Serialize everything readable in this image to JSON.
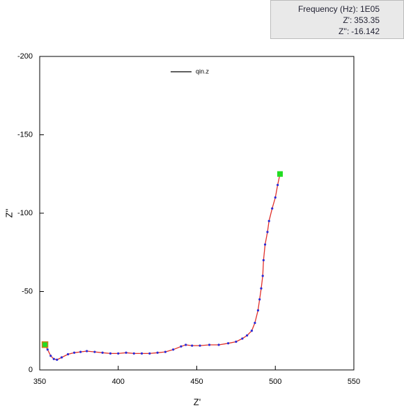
{
  "chart_data": {
    "type": "line",
    "x": [
      353.35,
      355,
      357,
      359,
      361,
      364,
      368,
      372,
      376,
      380,
      385,
      390,
      395,
      400,
      405,
      410,
      415,
      420,
      425,
      430,
      435,
      440,
      443,
      447,
      452,
      458,
      464,
      470,
      475,
      479,
      482,
      485,
      487,
      489,
      490,
      491,
      492,
      492.5,
      493.5,
      495,
      496,
      498,
      500,
      501.5,
      503
    ],
    "series": [
      {
        "name": "qin.z",
        "color": "#2b2bd6",
        "line_color": "#e0302a",
        "start_color": "#c8801a",
        "end_color": "#22dd22",
        "legend_color": "#000000",
        "values": [
          -16.142,
          -13,
          -9,
          -7,
          -6.5,
          -8,
          -10,
          -11,
          -11.5,
          -12,
          -11.5,
          -11,
          -10.5,
          -10.5,
          -11,
          -10.5,
          -10.5,
          -10.5,
          -11,
          -11.5,
          -13,
          -15,
          -16,
          -15.5,
          -15.5,
          -16,
          -16,
          -17,
          -18,
          -20,
          -22,
          -25,
          -30,
          -38,
          -45,
          -52,
          -60,
          -70,
          -80,
          -88,
          -95,
          -103,
          -110,
          -118,
          -125
        ]
      }
    ],
    "xlim": [
      350,
      550
    ],
    "xticks": [
      350,
      400,
      450,
      500,
      550
    ],
    "ylim": [
      0,
      -200
    ],
    "yticks": [
      0,
      -50,
      -100,
      -150,
      -200
    ],
    "xlabel": "Z'",
    "ylabel": "Z''",
    "legend": "top"
  },
  "tooltip": {
    "rows": [
      {
        "label": "Frequency (Hz):",
        "value": "1E05"
      },
      {
        "label": "Z':",
        "value": 353.35
      },
      {
        "label": "Z'':",
        "value": -16.142
      }
    ]
  }
}
